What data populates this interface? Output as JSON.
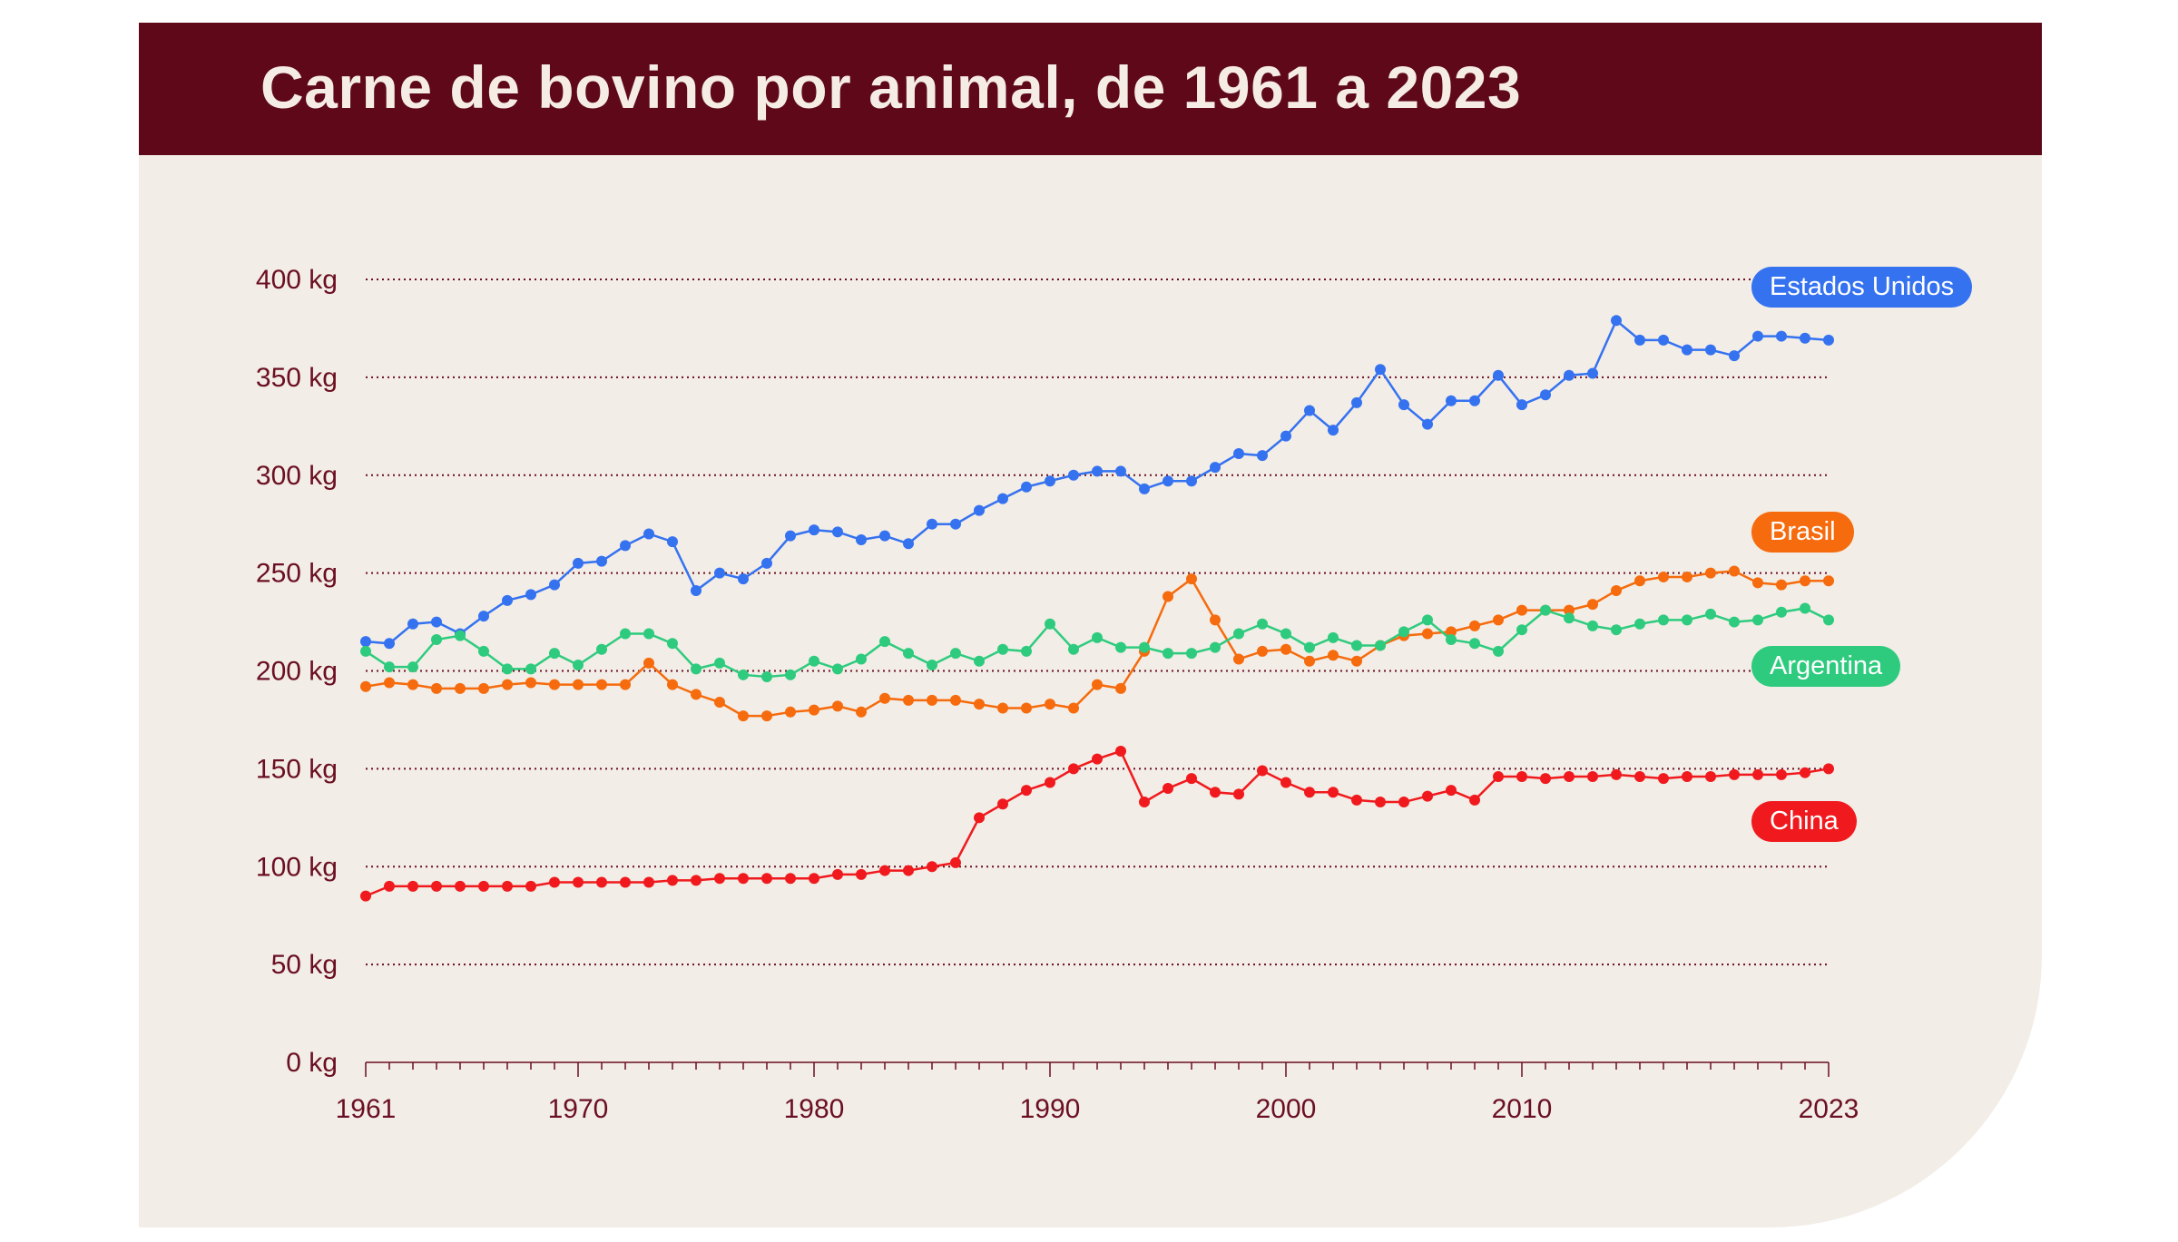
{
  "title": "Carne de bovino por animal, de 1961 a 2023",
  "colors": {
    "header": "#5e0819",
    "background": "#f2ede6",
    "axis_text": "#6b0f22"
  },
  "chart_data": {
    "type": "line",
    "title": "Carne de bovino por animal, de 1961 a 2023",
    "xlabel": "",
    "ylabel": "",
    "x_start": 1961,
    "x_end": 2023,
    "xlim": [
      1961,
      2023
    ],
    "ylim": [
      0,
      400
    ],
    "y_ticks": [
      "0 kg",
      "50 kg",
      "100 kg",
      "150 kg",
      "200 kg",
      "250 kg",
      "300 kg",
      "350 kg",
      "400 kg"
    ],
    "y_tick_values": [
      0,
      50,
      100,
      150,
      200,
      250,
      300,
      350,
      400
    ],
    "x_ticks": [
      "1961",
      "1970",
      "1980",
      "1990",
      "2000",
      "2010",
      "2023"
    ],
    "x_tick_values": [
      1961,
      1970,
      1980,
      1990,
      2000,
      2010,
      2023
    ],
    "grid": "horizontal dotted",
    "legend": "labels at right end",
    "series": [
      {
        "name": "Estados Unidos",
        "color": "#3572f0",
        "values": [
          215,
          214,
          224,
          225,
          219,
          228,
          236,
          239,
          244,
          255,
          256,
          264,
          270,
          266,
          241,
          250,
          247,
          255,
          269,
          272,
          271,
          267,
          269,
          265,
          275,
          275,
          282,
          288,
          294,
          297,
          300,
          302,
          302,
          293,
          297,
          297,
          304,
          311,
          310,
          320,
          333,
          323,
          337,
          354,
          336,
          326,
          338,
          338,
          351,
          336,
          341,
          351,
          352,
          379,
          369,
          369,
          364,
          364,
          361,
          371,
          371,
          370,
          369
        ]
      },
      {
        "name": "Brasil",
        "color": "#f56b0d",
        "values": [
          192,
          194,
          193,
          191,
          191,
          191,
          193,
          194,
          193,
          193,
          193,
          193,
          204,
          193,
          188,
          184,
          177,
          177,
          179,
          180,
          182,
          179,
          186,
          185,
          185,
          185,
          183,
          181,
          181,
          183,
          181,
          193,
          191,
          210,
          238,
          247,
          226,
          206,
          210,
          211,
          205,
          208,
          205,
          213,
          218,
          219,
          220,
          223,
          226,
          231,
          231,
          231,
          234,
          241,
          246,
          248,
          248,
          250,
          251,
          245,
          244,
          246,
          246
        ]
      },
      {
        "name": "Argentina",
        "color": "#2ecb7e",
        "values": [
          210,
          202,
          202,
          216,
          218,
          210,
          201,
          201,
          209,
          203,
          211,
          219,
          219,
          214,
          201,
          204,
          198,
          197,
          198,
          205,
          201,
          206,
          215,
          209,
          203,
          209,
          205,
          211,
          210,
          224,
          211,
          217,
          212,
          212,
          209,
          209,
          212,
          219,
          224,
          219,
          212,
          217,
          213,
          213,
          220,
          226,
          216,
          214,
          210,
          221,
          231,
          227,
          223,
          221,
          224,
          226,
          226,
          229,
          225,
          226,
          230,
          232,
          226
        ]
      },
      {
        "name": "China",
        "color": "#f01a1e",
        "values": [
          85,
          90,
          90,
          90,
          90,
          90,
          90,
          90,
          92,
          92,
          92,
          92,
          92,
          93,
          93,
          94,
          94,
          94,
          94,
          94,
          96,
          96,
          98,
          98,
          100,
          102,
          125,
          132,
          139,
          143,
          150,
          155,
          159,
          133,
          140,
          145,
          138,
          137,
          149,
          143,
          138,
          138,
          134,
          133,
          133,
          136,
          139,
          134,
          146,
          146,
          145,
          146,
          146,
          147,
          146,
          145,
          146,
          146,
          147,
          147,
          147,
          148,
          150
        ]
      }
    ]
  }
}
